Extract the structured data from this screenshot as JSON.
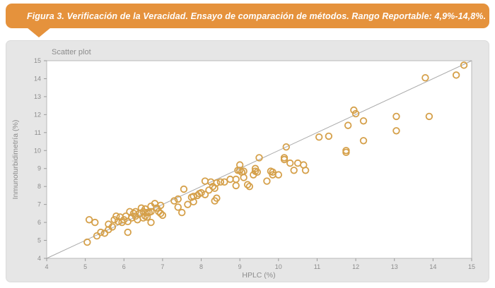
{
  "banner": {
    "caption": "Figura 3. Verificación de la Veracidad. Ensayo de comparación de métodos. Rango Reportable: 4,9%-14,8%."
  },
  "colors": {
    "banner_orange": "#E5923C",
    "card_background": "#E6E6E6",
    "plot_border": "#B8B8B8",
    "marker": "#D5A04A",
    "identity_line": "#A9A9A9",
    "text_gray": "#8C8C8C"
  },
  "chart_data": {
    "type": "scatter",
    "title": "Scatter plot",
    "xlabel": "HPLC (%)",
    "ylabel": "Inmunoturbidimetría (%)",
    "xlim": [
      4,
      15
    ],
    "ylim": [
      4,
      15
    ],
    "xticks": [
      4,
      5,
      6,
      7,
      8,
      9,
      10,
      11,
      12,
      13,
      14,
      15
    ],
    "yticks": [
      4,
      5,
      6,
      7,
      8,
      9,
      10,
      11,
      12,
      13,
      14,
      15
    ],
    "grid": false,
    "legend": "none",
    "identity_line": {
      "from": [
        4,
        4
      ],
      "to": [
        15,
        15
      ]
    },
    "points": [
      [
        5.05,
        4.9
      ],
      [
        5.1,
        6.15
      ],
      [
        5.25,
        6.0
      ],
      [
        5.3,
        5.25
      ],
      [
        5.4,
        5.45
      ],
      [
        5.5,
        5.4
      ],
      [
        5.6,
        5.9
      ],
      [
        5.6,
        5.6
      ],
      [
        5.7,
        5.75
      ],
      [
        5.75,
        6.15
      ],
      [
        5.8,
        6.35
      ],
      [
        5.85,
        6.05
      ],
      [
        5.9,
        6.3
      ],
      [
        5.95,
        6.0
      ],
      [
        6.0,
        6.15
      ],
      [
        6.05,
        6.35
      ],
      [
        6.1,
        6.05
      ],
      [
        6.1,
        5.45
      ],
      [
        6.2,
        6.25
      ],
      [
        6.3,
        6.35
      ],
      [
        6.35,
        6.15
      ],
      [
        6.4,
        6.5
      ],
      [
        6.5,
        6.6
      ],
      [
        6.5,
        6.25
      ],
      [
        6.55,
        6.35
      ],
      [
        6.6,
        6.55
      ],
      [
        6.15,
        6.6
      ],
      [
        6.25,
        6.5
      ],
      [
        6.3,
        6.6
      ],
      [
        6.45,
        6.8
      ],
      [
        6.55,
        6.75
      ],
      [
        6.6,
        6.3
      ],
      [
        6.65,
        6.55
      ],
      [
        6.7,
        6.6
      ],
      [
        6.7,
        6.9
      ],
      [
        6.7,
        6.0
      ],
      [
        6.8,
        7.05
      ],
      [
        6.85,
        6.8
      ],
      [
        6.9,
        6.6
      ],
      [
        6.95,
        6.95
      ],
      [
        6.95,
        6.5
      ],
      [
        7.0,
        6.4
      ],
      [
        7.3,
        7.2
      ],
      [
        7.4,
        7.3
      ],
      [
        7.4,
        6.85
      ],
      [
        7.5,
        6.55
      ],
      [
        7.55,
        7.85
      ],
      [
        7.65,
        7.0
      ],
      [
        7.75,
        7.4
      ],
      [
        7.8,
        7.15
      ],
      [
        7.8,
        7.45
      ],
      [
        7.9,
        7.5
      ],
      [
        7.95,
        7.6
      ],
      [
        8.0,
        7.65
      ],
      [
        8.1,
        8.3
      ],
      [
        8.1,
        7.55
      ],
      [
        8.2,
        7.8
      ],
      [
        8.25,
        8.25
      ],
      [
        8.3,
        8.0
      ],
      [
        8.35,
        7.9
      ],
      [
        8.35,
        7.2
      ],
      [
        8.4,
        8.2
      ],
      [
        8.4,
        7.35
      ],
      [
        8.5,
        8.25
      ],
      [
        8.6,
        8.25
      ],
      [
        8.75,
        8.4
      ],
      [
        8.9,
        8.05
      ],
      [
        8.9,
        8.4
      ],
      [
        8.95,
        8.9
      ],
      [
        9.0,
        9.2
      ],
      [
        9.0,
        8.9
      ],
      [
        9.05,
        8.8
      ],
      [
        9.1,
        8.85
      ],
      [
        9.1,
        8.5
      ],
      [
        9.2,
        8.1
      ],
      [
        9.25,
        8.0
      ],
      [
        9.35,
        8.65
      ],
      [
        9.4,
        9.0
      ],
      [
        9.4,
        8.85
      ],
      [
        9.45,
        8.8
      ],
      [
        9.5,
        9.6
      ],
      [
        9.7,
        8.3
      ],
      [
        9.8,
        8.85
      ],
      [
        9.85,
        8.8
      ],
      [
        9.85,
        8.65
      ],
      [
        10.0,
        8.65
      ],
      [
        10.15,
        9.6
      ],
      [
        10.15,
        9.5
      ],
      [
        10.2,
        10.2
      ],
      [
        10.3,
        9.3
      ],
      [
        10.4,
        8.9
      ],
      [
        10.5,
        9.3
      ],
      [
        10.65,
        9.2
      ],
      [
        10.7,
        8.9
      ],
      [
        11.05,
        10.75
      ],
      [
        11.3,
        10.8
      ],
      [
        11.75,
        10.0
      ],
      [
        11.75,
        9.9
      ],
      [
        11.8,
        11.4
      ],
      [
        11.95,
        12.25
      ],
      [
        12.0,
        12.05
      ],
      [
        12.2,
        11.65
      ],
      [
        12.2,
        10.55
      ],
      [
        13.05,
        11.9
      ],
      [
        13.05,
        11.1
      ],
      [
        13.8,
        14.05
      ],
      [
        13.9,
        11.9
      ],
      [
        14.6,
        14.2
      ],
      [
        14.8,
        14.75
      ]
    ]
  }
}
